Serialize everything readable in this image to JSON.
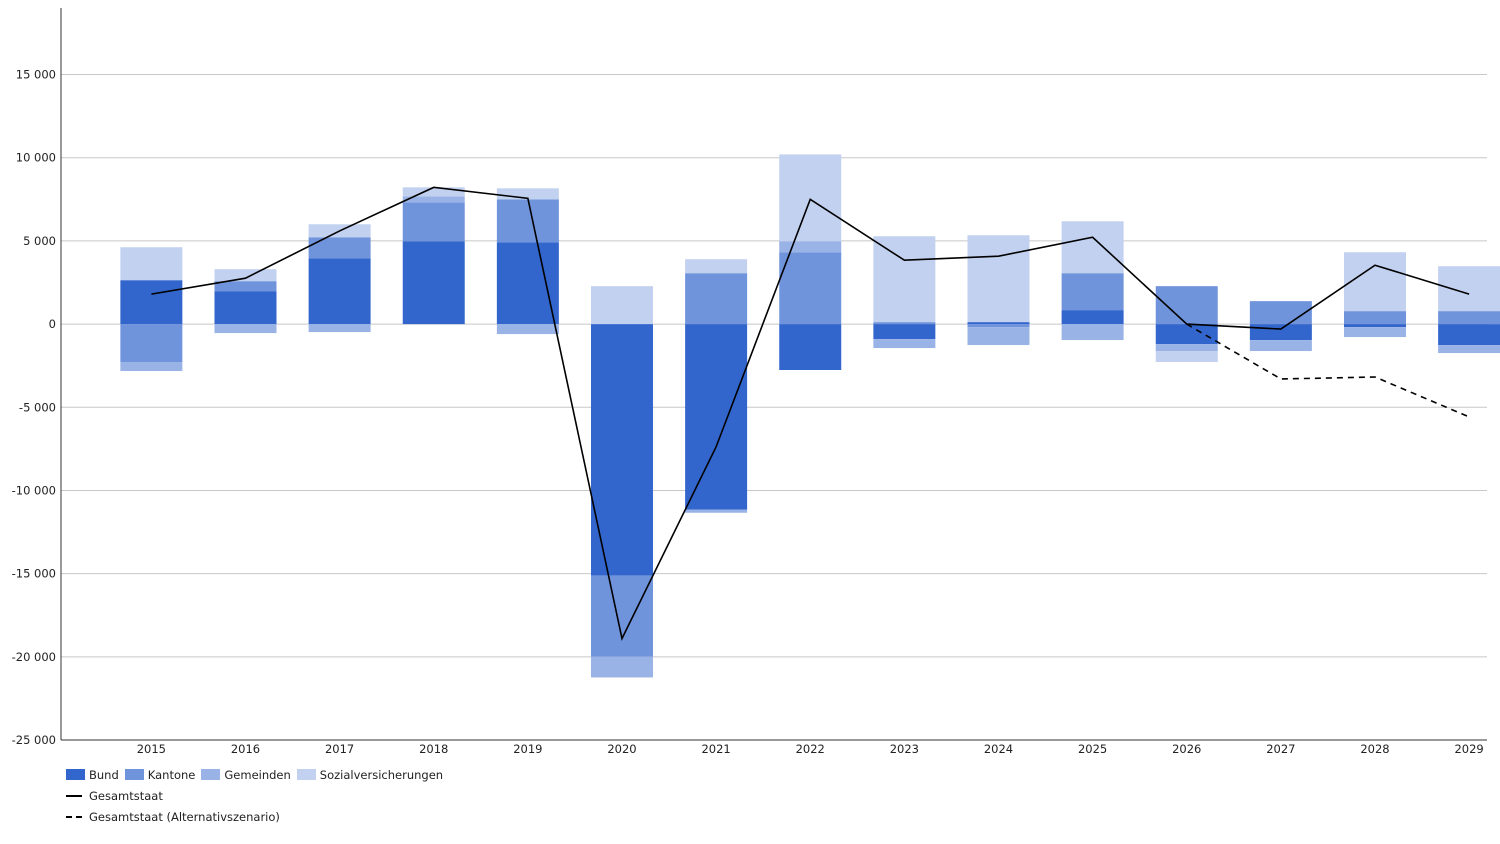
{
  "chart_data": {
    "type": "bar",
    "stacked": true,
    "categories": [
      "2015",
      "2016",
      "2017",
      "2018",
      "2019",
      "2020",
      "2021",
      "2022",
      "2023",
      "2024",
      "2025",
      "2026",
      "2027",
      "2028",
      "2029"
    ],
    "series": [
      {
        "name": "Bund",
        "color": "#3366cc",
        "values": [
          2640,
          1980,
          3960,
          4980,
          4920,
          -15120,
          -11160,
          -2760,
          -900,
          120,
          840,
          -1200,
          -960,
          -180,
          -1260
        ]
      },
      {
        "name": "Kantone",
        "color": "#7094db",
        "values": [
          -2280,
          600,
          1260,
          2340,
          2580,
          -4860,
          3060,
          4320,
          120,
          -180,
          2220,
          2280,
          1380,
          780,
          780
        ]
      },
      {
        "name": "Gemeinden",
        "color": "#99b3e6",
        "values": [
          -540,
          -540,
          -480,
          360,
          -600,
          -1260,
          -180,
          660,
          -540,
          -1080,
          -960,
          -420,
          -660,
          -600,
          -480
        ]
      },
      {
        "name": "Sozialversicherungen",
        "color": "#c2d1f0",
        "values": [
          1980,
          720,
          780,
          540,
          660,
          2280,
          840,
          5220,
          5160,
          5220,
          3120,
          -660,
          0,
          3540,
          2700
        ]
      }
    ],
    "lines": [
      {
        "name": "Gesamtstaat",
        "style": "solid",
        "color": "#000000",
        "values": [
          1800,
          2760,
          5600,
          8220,
          7560,
          -18900,
          -7380,
          7500,
          3840,
          4080,
          5220,
          0,
          -300,
          3540,
          1800
        ]
      },
      {
        "name": "Gesamtstaat (Alternativszenario)",
        "style": "dashed",
        "color": "#000000",
        "values": [
          null,
          null,
          null,
          null,
          null,
          null,
          null,
          null,
          null,
          null,
          null,
          0,
          -3300,
          -3180,
          -5580
        ]
      }
    ],
    "ylim": [
      -25000,
      19000
    ],
    "yticks": [
      -25000,
      -20000,
      -15000,
      -10000,
      -5000,
      0,
      5000,
      10000,
      15000
    ],
    "ytick_labels": [
      "-25 000",
      "-20 000",
      "-15 000",
      "-10 000",
      "-5 000",
      "0",
      "5 000",
      "10 000",
      "15 000"
    ],
    "grid": true,
    "legend_position": "bottom-left",
    "title": "",
    "xlabel": "",
    "ylabel": ""
  }
}
